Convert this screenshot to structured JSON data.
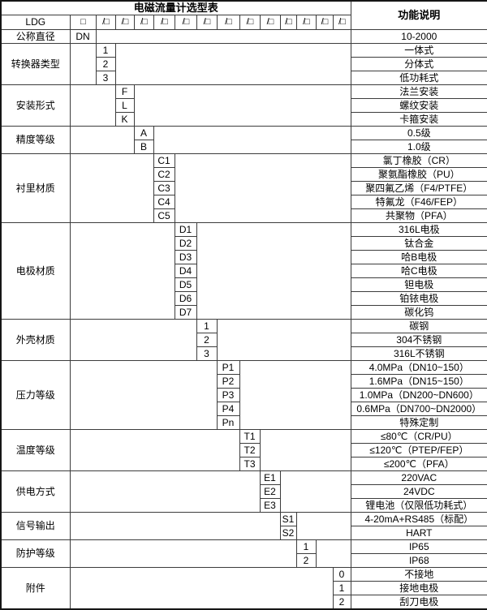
{
  "table": {
    "title": "电磁流量计选型表",
    "function_header": "功能说明",
    "model_prefix": "LDG",
    "first_box": "□",
    "code_box": "/□",
    "code_column_count": 13,
    "diameter_row": {
      "name": "公称直径",
      "code": "DN",
      "function": "10-2000"
    },
    "blocks": [
      {
        "name": "转换器类型",
        "col": 0,
        "items": [
          {
            "code": "1",
            "function": "一体式"
          },
          {
            "code": "2",
            "function": "分体式"
          },
          {
            "code": "3",
            "function": "低功耗式"
          }
        ]
      },
      {
        "name": "安装形式",
        "col": 1,
        "items": [
          {
            "code": "F",
            "function": "法兰安装"
          },
          {
            "code": "L",
            "function": "螺纹安装"
          },
          {
            "code": "K",
            "function": "卡箍安装"
          }
        ]
      },
      {
        "name": "精度等级",
        "col": 2,
        "items": [
          {
            "code": "A",
            "function": "0.5级"
          },
          {
            "code": "B",
            "function": "1.0级"
          }
        ]
      },
      {
        "name": "衬里材质",
        "col": 3,
        "items": [
          {
            "code": "C1",
            "function": "氯丁橡胶（CR）"
          },
          {
            "code": "C2",
            "function": "聚氨酯橡胶（PU）"
          },
          {
            "code": "C3",
            "function": "聚四氟乙烯（F4/PTFE）"
          },
          {
            "code": "C4",
            "function": "特氟龙（F46/FEP）"
          },
          {
            "code": "C5",
            "function": "共聚物（PFA）"
          }
        ]
      },
      {
        "name": "电极材质",
        "col": 4,
        "items": [
          {
            "code": "D1",
            "function": "316L电极"
          },
          {
            "code": "D2",
            "function": "钛合金"
          },
          {
            "code": "D3",
            "function": "哈B电极"
          },
          {
            "code": "D4",
            "function": "哈C电极"
          },
          {
            "code": "D5",
            "function": "钽电极"
          },
          {
            "code": "D6",
            "function": "铂铱电极"
          },
          {
            "code": "D7",
            "function": "碳化钨"
          }
        ]
      },
      {
        "name": "外壳材质",
        "col": 5,
        "items": [
          {
            "code": "1",
            "function": "碳钢"
          },
          {
            "code": "2",
            "function": "304不锈钢"
          },
          {
            "code": "3",
            "function": "316L不锈钢"
          }
        ]
      },
      {
        "name": "压力等级",
        "col": 6,
        "items": [
          {
            "code": "P1",
            "function": "4.0MPa（DN10~150）",
            "align": "left"
          },
          {
            "code": "P2",
            "function": "1.6MPa（DN15~150）",
            "align": "left"
          },
          {
            "code": "P3",
            "function": "1.0MPa（DN200~DN600）",
            "align": "left"
          },
          {
            "code": "P4",
            "function": "0.6MPa（DN700~DN2000）",
            "align": "left"
          },
          {
            "code": "Pn",
            "function": "特殊定制"
          }
        ]
      },
      {
        "name": "温度等级",
        "col": 7,
        "items": [
          {
            "code": "T1",
            "function": "≤80℃（CR/PU）"
          },
          {
            "code": "T2",
            "function": "≤120℃（PTEP/FEP）"
          },
          {
            "code": "T3",
            "function": "≤200℃（PFA）"
          }
        ]
      },
      {
        "name": "供电方式",
        "col": 8,
        "items": [
          {
            "code": "E1",
            "function": "220VAC"
          },
          {
            "code": "E2",
            "function": "24VDC"
          },
          {
            "code": "E3",
            "function": "锂电池（仅限低功耗式）"
          }
        ]
      },
      {
        "name": "信号输出",
        "col": 9,
        "items": [
          {
            "code": "S1",
            "function": "4-20mA+RS485（标配）"
          },
          {
            "code": "S2",
            "function": "HART"
          }
        ]
      },
      {
        "name": "防护等级",
        "col": 10,
        "items": [
          {
            "code": "1",
            "function": "IP65"
          },
          {
            "code": "2",
            "function": "IP68"
          }
        ]
      },
      {
        "name": "附件",
        "col": 12,
        "items": [
          {
            "code": "0",
            "function": "不接地"
          },
          {
            "code": "1",
            "function": "接地电极"
          },
          {
            "code": "2",
            "function": "刮刀电极"
          }
        ]
      }
    ]
  },
  "layout_colors": {
    "background": "#ffffff",
    "text": "#000000",
    "grid": "#3c3c3c"
  }
}
